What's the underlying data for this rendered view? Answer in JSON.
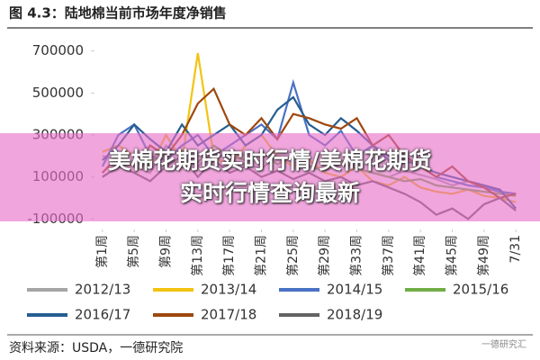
{
  "chart_data": {
    "type": "line",
    "title": "图 4.3：陆地棉当前市场年度净销售",
    "x": [
      1,
      3,
      5,
      7,
      9,
      11,
      13,
      15,
      17,
      19,
      21,
      23,
      25,
      27,
      29,
      31,
      33,
      35,
      37,
      39,
      41,
      43,
      45,
      47,
      49,
      51,
      53
    ],
    "xlim": [
      0,
      54
    ],
    "xticks": [
      {
        "value": 1,
        "label": "第1周"
      },
      {
        "value": 5,
        "label": "第5周"
      },
      {
        "value": 9,
        "label": "第9周"
      },
      {
        "value": 13,
        "label": "第13周"
      },
      {
        "value": 17,
        "label": "第17周"
      },
      {
        "value": 21,
        "label": "第21周"
      },
      {
        "value": 25,
        "label": "第25周"
      },
      {
        "value": 29,
        "label": "第29周"
      },
      {
        "value": 33,
        "label": "第33周"
      },
      {
        "value": 37,
        "label": "第37周"
      },
      {
        "value": 41,
        "label": "第41周"
      },
      {
        "value": 45,
        "label": "第45周"
      },
      {
        "value": 49,
        "label": "第49周"
      },
      {
        "value": 53,
        "label": "7/31"
      }
    ],
    "ylim": [
      -150000,
      750000
    ],
    "yticks": [
      -100000,
      100000,
      300000,
      500000,
      700000
    ],
    "series": [
      {
        "name": "2012/13",
        "color": "#a5a5a5",
        "values": [
          200000,
          180000,
          150000,
          120000,
          250000,
          200000,
          150000,
          220000,
          180000,
          160000,
          140000,
          200000,
          170000,
          150000,
          130000,
          160000,
          140000,
          120000,
          100000,
          130000,
          110000,
          90000,
          60000,
          80000,
          50000,
          30000,
          20000
        ]
      },
      {
        "name": "2013/14",
        "color": "#f2c311",
        "values": [
          220000,
          250000,
          200000,
          150000,
          300000,
          180000,
          690000,
          200000,
          150000,
          250000,
          300000,
          200000,
          150000,
          180000,
          120000,
          100000,
          150000,
          80000,
          60000,
          100000,
          50000,
          30000,
          20000,
          40000,
          10000,
          0,
          -20000
        ]
      },
      {
        "name": "2014/15",
        "color": "#4a72c4",
        "values": [
          150000,
          300000,
          350000,
          200000,
          180000,
          250000,
          300000,
          200000,
          250000,
          300000,
          350000,
          280000,
          550000,
          300000,
          250000,
          320000,
          200000,
          250000,
          180000,
          200000,
          150000,
          100000,
          80000,
          60000,
          50000,
          30000,
          20000
        ]
      },
      {
        "name": "2015/16",
        "color": "#70ad47",
        "values": [
          100000,
          150000,
          120000,
          180000,
          200000,
          150000,
          170000,
          250000,
          200000,
          180000,
          220000,
          160000,
          200000,
          150000,
          130000,
          180000,
          140000,
          120000,
          100000,
          80000,
          90000,
          60000,
          50000,
          40000,
          30000,
          20000,
          10000
        ]
      },
      {
        "name": "2016/17",
        "color": "#255e91",
        "values": [
          180000,
          250000,
          350000,
          280000,
          220000,
          350000,
          250000,
          300000,
          350000,
          250000,
          300000,
          420000,
          480000,
          350000,
          300000,
          380000,
          320000,
          250000,
          200000,
          180000,
          150000,
          120000,
          100000,
          80000,
          60000,
          40000,
          -50000
        ]
      },
      {
        "name": "2017/18",
        "color": "#9e480e",
        "values": [
          120000,
          200000,
          150000,
          250000,
          200000,
          300000,
          450000,
          520000,
          350000,
          300000,
          380000,
          280000,
          400000,
          380000,
          350000,
          330000,
          380000,
          250000,
          300000,
          200000,
          150000,
          100000,
          150000,
          80000,
          50000,
          0,
          20000
        ]
      },
      {
        "name": "2018/19",
        "color": "#636363",
        "values": [
          100000,
          150000,
          120000,
          80000,
          150000,
          200000,
          100000,
          180000,
          120000,
          150000,
          100000,
          130000,
          90000,
          120000,
          80000,
          100000,
          60000,
          80000,
          50000,
          20000,
          -20000,
          -80000,
          -50000,
          -100000,
          -30000,
          0,
          -60000
        ]
      }
    ],
    "source": "资料来源：USDA，一德研究院",
    "watermark": "一德研究汇"
  },
  "overlay": {
    "lines": [
      "美棉花期货实时行情/美棉花期货",
      "实时行情查询最新"
    ]
  }
}
